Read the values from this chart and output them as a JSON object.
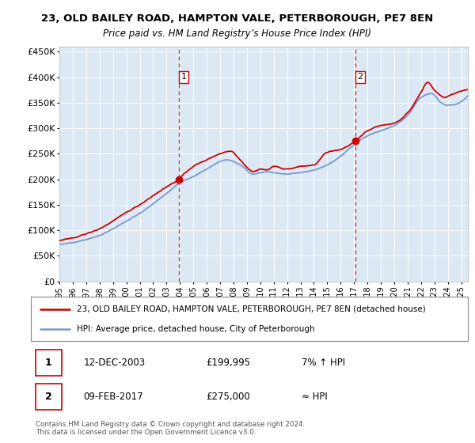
{
  "title_line1": "23, OLD BAILEY ROAD, HAMPTON VALE, PETERBOROUGH, PE7 8EN",
  "title_line2": "Price paid vs. HM Land Registry’s House Price Index (HPI)",
  "background_color": "#ffffff",
  "plot_bg_color": "#dce9f5",
  "grid_color": "#ffffff",
  "hpi_color": "#7799cc",
  "price_color": "#cc0000",
  "marker1_year": 2003.92,
  "marker1_value": 199995,
  "marker2_year": 2017.1,
  "marker2_value": 275000,
  "legend_line1": "23, OLD BAILEY ROAD, HAMPTON VALE, PETERBOROUGH, PE7 8EN (detached house)",
  "legend_line2": "HPI: Average price, detached house, City of Peterborough",
  "table_row1_num": "1",
  "table_row1_date": "12-DEC-2003",
  "table_row1_price": "£199,995",
  "table_row1_hpi": "7% ↑ HPI",
  "table_row2_num": "2",
  "table_row2_date": "09-FEB-2017",
  "table_row2_price": "£275,000",
  "table_row2_hpi": "≈ HPI",
  "footer": "Contains HM Land Registry data © Crown copyright and database right 2024.\nThis data is licensed under the Open Government Licence v3.0.",
  "ylim_min": 0,
  "ylim_max": 460000,
  "xmin": 1995.0,
  "xmax": 2025.5,
  "hpi_keypoints_x": [
    1995.0,
    1996.0,
    1997.0,
    1998.0,
    1999.0,
    2000.0,
    2001.0,
    2002.0,
    2003.0,
    2004.0,
    2005.0,
    2006.0,
    2007.5,
    2008.5,
    2009.5,
    2010.5,
    2011.0,
    2012.0,
    2013.0,
    2014.0,
    2015.0,
    2016.0,
    2017.0,
    2018.0,
    2019.0,
    2020.0,
    2021.0,
    2022.0,
    2022.8,
    2023.5,
    2024.0,
    2025.3
  ],
  "hpi_keypoints_y": [
    72000,
    76000,
    82000,
    90000,
    103000,
    118000,
    133000,
    152000,
    172000,
    193000,
    205000,
    220000,
    238000,
    228000,
    210000,
    215000,
    213000,
    210000,
    213000,
    218000,
    228000,
    245000,
    268000,
    285000,
    295000,
    305000,
    325000,
    360000,
    368000,
    350000,
    345000,
    358000
  ],
  "price_keypoints_x": [
    1995.0,
    1996.0,
    1997.0,
    1998.0,
    1999.0,
    2000.0,
    2001.0,
    2002.0,
    2003.0,
    2003.92,
    2004.5,
    2005.0,
    2006.0,
    2007.0,
    2007.8,
    2008.5,
    2009.5,
    2010.0,
    2010.5,
    2011.0,
    2012.0,
    2013.0,
    2014.0,
    2015.0,
    2016.0,
    2017.1,
    2018.0,
    2019.0,
    2020.0,
    2021.0,
    2022.0,
    2022.5,
    2023.0,
    2023.8,
    2024.2,
    2025.3
  ],
  "price_keypoints_y": [
    80000,
    85000,
    93000,
    103000,
    118000,
    135000,
    150000,
    168000,
    185000,
    199995,
    215000,
    225000,
    238000,
    250000,
    255000,
    238000,
    215000,
    220000,
    218000,
    225000,
    220000,
    225000,
    228000,
    253000,
    258000,
    275000,
    295000,
    305000,
    310000,
    330000,
    370000,
    390000,
    375000,
    360000,
    365000,
    375000
  ]
}
